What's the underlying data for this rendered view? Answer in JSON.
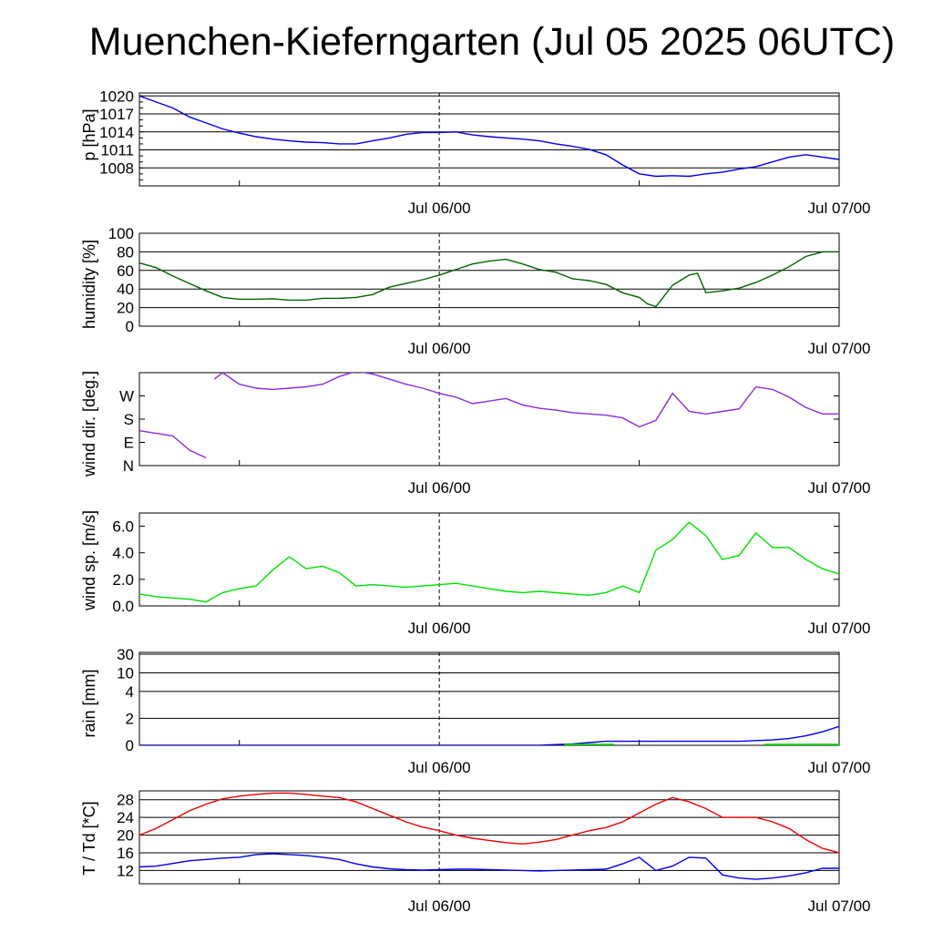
{
  "title": "Muenchen-Kieferngarten (Jul 05 2025 06UTC)",
  "time_labels": [
    "Jul 06/00",
    "Jul 07/00"
  ],
  "chart_data": [
    {
      "type": "line",
      "id": "pressure",
      "ylabel": "p [hPa]",
      "yticks": [
        1008,
        1011,
        1014,
        1017,
        1020
      ],
      "ylim": [
        1005,
        1020.5
      ],
      "grid": true,
      "series": [
        {
          "color": "#0000ee",
          "x": [
            0,
            1,
            2,
            3,
            4,
            5,
            6,
            7,
            8,
            9,
            10,
            11,
            12,
            13,
            14,
            15,
            16,
            17,
            18,
            19,
            20,
            21,
            22,
            23,
            24,
            25,
            26,
            27,
            28,
            29,
            30,
            31,
            32,
            33,
            34,
            35,
            36,
            37,
            38,
            39,
            40,
            41,
            42
          ],
          "y": [
            1020,
            1019,
            1018,
            1016.5,
            1015.5,
            1014.5,
            1013.8,
            1013.2,
            1012.8,
            1012.5,
            1012.3,
            1012.2,
            1012,
            1012,
            1012.5,
            1013,
            1013.6,
            1013.9,
            1013.9,
            1014,
            1013.5,
            1013.2,
            1013,
            1012.8,
            1012.5,
            1012,
            1011.6,
            1011.1,
            1010.2,
            1008.5,
            1007,
            1006.6,
            1006.7,
            1006.6,
            1007,
            1007.3,
            1007.8,
            1008.2,
            1009,
            1009.8,
            1010.2,
            1009.8,
            1009.4
          ]
        }
      ]
    },
    {
      "type": "line",
      "id": "humidity",
      "ylabel": "humidity [%]",
      "yticks": [
        0,
        20,
        40,
        60,
        80,
        100
      ],
      "ylim": [
        0,
        100
      ],
      "grid": true,
      "series": [
        {
          "color": "#006400",
          "x": [
            0,
            1,
            2,
            3,
            4,
            5,
            6,
            7,
            8,
            9,
            10,
            11,
            12,
            13,
            14,
            15,
            16,
            17,
            18,
            19,
            20,
            21,
            22,
            23,
            24,
            25,
            26,
            27,
            28,
            29,
            30,
            30.5,
            31,
            32,
            33,
            33.5,
            34,
            35,
            36,
            37,
            38,
            39,
            40,
            41,
            42
          ],
          "y": [
            68,
            63,
            54,
            46,
            38,
            31,
            29,
            29,
            29.5,
            28,
            28,
            30,
            30,
            31,
            34,
            42,
            46,
            50,
            55,
            61,
            67,
            70,
            72,
            67,
            61,
            58,
            51,
            49,
            45,
            36,
            31,
            24,
            21,
            44,
            55,
            57,
            36,
            38,
            41,
            47,
            55,
            64,
            75,
            80,
            80
          ]
        }
      ]
    },
    {
      "type": "line",
      "id": "wind_direction",
      "ylabel": "wind dir. [deg.]",
      "yticks": [
        "N",
        "E",
        "S",
        "W"
      ],
      "ylim": [
        0,
        360
      ],
      "grid": false,
      "series": [
        {
          "color": "#8a2be2",
          "x": [
            0,
            1,
            2,
            3,
            4
          ],
          "y": [
            135,
            125,
            115,
            60,
            30
          ]
        },
        {
          "color": "#8a2be2",
          "x": [
            4.5,
            5,
            6,
            7,
            8,
            9,
            10,
            11,
            12,
            13,
            14,
            15,
            16,
            17,
            18,
            19,
            20,
            21,
            22,
            23,
            24,
            25,
            26,
            27,
            28,
            29,
            30,
            31,
            32,
            33,
            34,
            35,
            36,
            37,
            38,
            39,
            40,
            41,
            42
          ],
          "y": [
            335,
            360,
            315,
            300,
            295,
            300,
            305,
            315,
            345,
            365,
            355,
            335,
            315,
            300,
            280,
            265,
            240,
            250,
            260,
            235,
            222,
            215,
            205,
            200,
            195,
            185,
            150,
            175,
            280,
            210,
            200,
            210,
            220,
            305,
            295,
            265,
            225,
            200,
            200
          ]
        }
      ]
    },
    {
      "type": "line",
      "id": "wind_speed",
      "ylabel": "wind sp. [m/s]",
      "yticks": [
        0.0,
        2.0,
        4.0,
        6.0
      ],
      "ylim": [
        0,
        7
      ],
      "grid": false,
      "series": [
        {
          "color": "#00e000",
          "x": [
            0,
            1,
            2,
            3,
            4,
            5,
            6,
            7,
            8,
            9,
            10,
            11,
            12,
            13,
            14,
            15,
            16,
            17,
            18,
            19,
            20,
            21,
            22,
            23,
            24,
            25,
            26,
            27,
            28,
            29,
            30,
            31,
            32,
            33,
            34,
            35,
            36,
            37,
            38,
            39,
            40,
            41,
            42
          ],
          "y": [
            0.9,
            0.7,
            0.6,
            0.5,
            0.3,
            1.0,
            1.3,
            1.5,
            2.7,
            3.7,
            2.8,
            3.0,
            2.5,
            1.5,
            1.6,
            1.5,
            1.4,
            1.5,
            1.6,
            1.7,
            1.5,
            1.3,
            1.1,
            1.0,
            1.1,
            1.0,
            0.9,
            0.8,
            1.0,
            1.5,
            1.0,
            4.2,
            5.0,
            6.3,
            5.3,
            3.5,
            3.8,
            5.5,
            4.4,
            4.4,
            3.5,
            2.8,
            2.4
          ]
        }
      ]
    },
    {
      "type": "area",
      "id": "rain",
      "ylabel": "rain [mm]",
      "yticks": [
        "0",
        "2",
        "4",
        "10",
        "30"
      ],
      "grid": true,
      "series": [
        {
          "color": "#0000ee",
          "x": [
            0,
            24,
            26,
            27,
            28,
            29,
            30,
            31,
            32,
            33,
            34,
            35,
            36,
            37,
            38,
            39,
            40,
            41,
            42
          ],
          "y": [
            0,
            0,
            0.1,
            0.2,
            0.3,
            0.3,
            0.3,
            0.3,
            0.3,
            0.3,
            0.3,
            0.3,
            0.3,
            0.35,
            0.4,
            0.5,
            0.7,
            1.0,
            1.4
          ]
        },
        {
          "color": "#00d000",
          "bars": [
            [
              25.5,
              28.5
            ],
            [
              37.5,
              42
            ]
          ],
          "value": 0.12
        }
      ]
    },
    {
      "type": "line",
      "id": "temperature",
      "ylabel": "T / Td [*C]",
      "yticks": [
        12,
        16,
        20,
        24,
        28
      ],
      "ylim": [
        9,
        30
      ],
      "grid": true,
      "series": [
        {
          "color": "#ee0000",
          "x": [
            0,
            1,
            2,
            3,
            4,
            5,
            6,
            7,
            8,
            9,
            10,
            11,
            12,
            13,
            14,
            15,
            16,
            17,
            18,
            19,
            20,
            21,
            22,
            23,
            24,
            25,
            26,
            27,
            28,
            29,
            30,
            31,
            32,
            33,
            34,
            35,
            36,
            37,
            38,
            39,
            40,
            41,
            42
          ],
          "y": [
            20,
            21.5,
            23.5,
            25.5,
            27,
            28.2,
            28.8,
            29.2,
            29.5,
            29.5,
            29.2,
            28.8,
            28.5,
            27.5,
            26,
            24.5,
            23,
            21.8,
            21,
            20,
            19.3,
            18.8,
            18.3,
            18,
            18.4,
            19,
            20,
            21,
            21.7,
            23,
            25,
            27,
            28.5,
            27.5,
            26,
            24,
            24,
            24,
            23,
            21.5,
            19,
            17,
            16
          ]
        },
        {
          "color": "#0000ee",
          "x": [
            0,
            1,
            2,
            3,
            4,
            5,
            6,
            7,
            8,
            9,
            10,
            11,
            12,
            13,
            14,
            15,
            16,
            17,
            18,
            19,
            20,
            21,
            22,
            23,
            24,
            25,
            26,
            27,
            28,
            29,
            30,
            31,
            32,
            33,
            34,
            35,
            36,
            37,
            38,
            39,
            40,
            41,
            42
          ],
          "y": [
            12.8,
            13.0,
            13.6,
            14.2,
            14.5,
            14.8,
            15.0,
            15.6,
            15.8,
            15.6,
            15.4,
            15.0,
            14.5,
            13.5,
            12.8,
            12.4,
            12.2,
            12.1,
            12.2,
            12.3,
            12.3,
            12.2,
            12.1,
            12.0,
            11.9,
            12.0,
            12.1,
            12.2,
            12.3,
            13.5,
            15.0,
            12.0,
            13.0,
            15.0,
            14.8,
            11.0,
            10.3,
            10.0,
            10.3,
            10.8,
            11.5,
            12.5,
            12.5
          ]
        }
      ]
    }
  ]
}
